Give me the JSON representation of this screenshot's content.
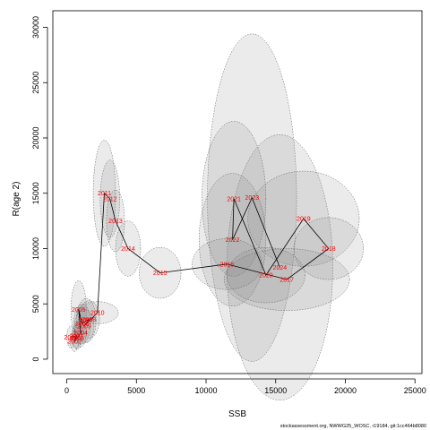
{
  "chart_data": {
    "type": "scatter",
    "xlabel": "SSB",
    "ylabel": "R(age 2)",
    "xlim": [
      -1000,
      25500
    ],
    "ylim": [
      -1300,
      31500
    ],
    "x_ticks": [
      0,
      5000,
      10000,
      15000,
      20000,
      25000
    ],
    "y_ticks": [
      0,
      5000,
      10000,
      15000,
      20000,
      25000,
      30000
    ],
    "grid": false,
    "ellipse_color": "#808080",
    "line_color": "#000000",
    "label_color": "#ff0000",
    "points": [
      {
        "year": "2000",
        "x": 300,
        "y": 2000,
        "rx": 300,
        "ry": 1000
      },
      {
        "year": "2001",
        "x": 700,
        "y": 2100,
        "rx": 350,
        "ry": 1100
      },
      {
        "year": "2002",
        "x": 550,
        "y": 1600,
        "rx": 300,
        "ry": 900
      },
      {
        "year": "2003",
        "x": 750,
        "y": 1900,
        "rx": 350,
        "ry": 1000
      },
      {
        "year": "2004",
        "x": 1000,
        "y": 2400,
        "rx": 400,
        "ry": 1300
      },
      {
        "year": "2005",
        "x": 850,
        "y": 4500,
        "rx": 550,
        "ry": 2600
      },
      {
        "year": "2006",
        "x": 1100,
        "y": 3200,
        "rx": 600,
        "ry": 1800
      },
      {
        "year": "2007",
        "x": 1400,
        "y": 3500,
        "rx": 700,
        "ry": 2000
      },
      {
        "year": "2008",
        "x": 1600,
        "y": 3600,
        "rx": 750,
        "ry": 1700
      },
      {
        "year": "2009",
        "x": 1250,
        "y": 3000,
        "rx": 700,
        "ry": 1500
      },
      {
        "year": "2010",
        "x": 2200,
        "y": 4200,
        "rx": 1500,
        "ry": 1000
      },
      {
        "year": "2011",
        "x": 2700,
        "y": 15000,
        "rx": 800,
        "ry": 4800
      },
      {
        "year": "2012",
        "x": 3100,
        "y": 14500,
        "rx": 700,
        "ry": 3500
      },
      {
        "year": "2013",
        "x": 3500,
        "y": 12500,
        "rx": 650,
        "ry": 2800
      },
      {
        "year": "2014",
        "x": 4400,
        "y": 10000,
        "rx": 900,
        "ry": 2500
      },
      {
        "year": "2015",
        "x": 6700,
        "y": 7800,
        "rx": 1500,
        "ry": 2300
      },
      {
        "year": "2016",
        "x": 11500,
        "y": 8600,
        "rx": 2500,
        "ry": 2300
      },
      {
        "year": "2017",
        "x": 15800,
        "y": 7200,
        "rx": 4500,
        "ry": 2800
      },
      {
        "year": "2018",
        "x": 18800,
        "y": 10000,
        "rx": 2500,
        "ry": 2800
      },
      {
        "year": "2019",
        "x": 17000,
        "y": 12700,
        "rx": 4000,
        "ry": 4300
      },
      {
        "year": "2020",
        "x": 14300,
        "y": 7600,
        "rx": 2800,
        "ry": 2500
      },
      {
        "year": "2021",
        "x": 12000,
        "y": 14500,
        "rx": 2300,
        "ry": 7000
      },
      {
        "year": "2022",
        "x": 11900,
        "y": 10800,
        "rx": 2400,
        "ry": 6000
      },
      {
        "year": "2023",
        "x": 13300,
        "y": 14600,
        "rx": 3200,
        "ry": 14800
      },
      {
        "year": "2024",
        "x": 15300,
        "y": 8300,
        "rx": 3800,
        "ry": 12000
      }
    ]
  },
  "footer": "stockassessment.org, NWWG25_WOSC, r19184, git:1cc464b8080"
}
